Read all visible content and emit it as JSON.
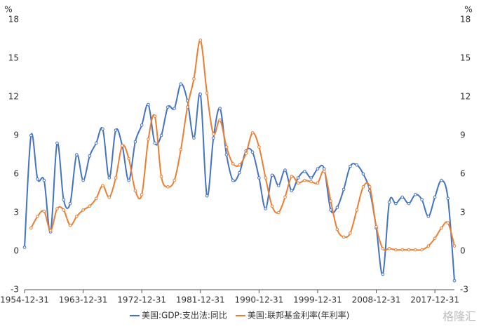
{
  "chart_data": {
    "type": "line",
    "y_unit": "%",
    "y2_unit": "%",
    "categories": [
      "1954-12-31",
      null,
      null,
      null,
      null,
      null,
      null,
      null,
      null,
      "1963-12-31",
      null,
      null,
      null,
      null,
      null,
      null,
      null,
      null,
      "1972-12-31",
      null,
      null,
      null,
      null,
      null,
      null,
      null,
      null,
      "1981-12-31",
      null,
      null,
      null,
      null,
      null,
      null,
      null,
      null,
      "1990-12-31",
      null,
      null,
      null,
      null,
      null,
      null,
      null,
      null,
      "1999-12-31",
      null,
      null,
      null,
      null,
      null,
      null,
      null,
      null,
      "2008-12-31",
      null,
      null,
      null,
      null,
      null,
      null,
      null,
      null,
      "2017-12-31",
      null,
      null,
      null
    ],
    "series": [
      {
        "name": "美国:GDP:支出法:同比",
        "color": "#4472c4",
        "axis": "y",
        "values": [
          0.3,
          9.0,
          5.6,
          5.5,
          1.5,
          8.4,
          4.0,
          3.7,
          7.5,
          5.5,
          7.4,
          8.4,
          9.5,
          5.7,
          9.4,
          8.2,
          5.5,
          8.5,
          9.8,
          11.4,
          8.4,
          9.0,
          11.2,
          11.1,
          13.0,
          11.7,
          8.8,
          12.2,
          4.3,
          8.8,
          11.1,
          7.5,
          5.5,
          6.1,
          7.8,
          7.7,
          5.7,
          3.3,
          5.9,
          5.1,
          6.3,
          4.7,
          5.7,
          6.2,
          5.7,
          6.4,
          6.4,
          3.2,
          3.4,
          4.8,
          6.6,
          6.7,
          6.0,
          4.7,
          1.8,
          -1.8,
          3.8,
          3.7,
          4.2,
          3.7,
          4.4,
          4.0,
          2.7,
          4.2,
          5.5,
          4.1,
          -2.3
        ]
      },
      {
        "name": "美国:联邦基金利率(年利率)",
        "color": "#ed7d31",
        "axis": "y2",
        "values": [
          null,
          1.8,
          2.7,
          3.1,
          1.6,
          3.3,
          3.2,
          2.0,
          2.7,
          3.2,
          3.5,
          4.1,
          5.1,
          4.2,
          5.7,
          8.2,
          7.2,
          4.7,
          4.4,
          8.7,
          10.5,
          5.8,
          5.0,
          5.5,
          7.9,
          11.2,
          13.4,
          16.4,
          12.3,
          9.1,
          10.2,
          8.1,
          6.8,
          6.7,
          7.6,
          9.2,
          8.1,
          5.7,
          3.5,
          3.0,
          4.2,
          5.8,
          5.3,
          5.5,
          5.4,
          5.3,
          6.2,
          3.9,
          1.7,
          1.1,
          1.4,
          3.2,
          5.0,
          5.0,
          1.9,
          0.2,
          0.2,
          0.1,
          0.1,
          0.1,
          0.1,
          0.1,
          0.4,
          1.0,
          1.8,
          2.2,
          0.4
        ]
      }
    ],
    "ylim": [
      -3,
      18
    ],
    "yticks": [
      -3,
      0,
      3,
      6,
      9,
      12,
      15,
      18
    ],
    "y2lim": [
      -3,
      18
    ],
    "y2ticks": [
      -3,
      0,
      3,
      6,
      9,
      12,
      15,
      18
    ],
    "legend": "bottom",
    "grid": false,
    "watermark": "格隆汇"
  }
}
